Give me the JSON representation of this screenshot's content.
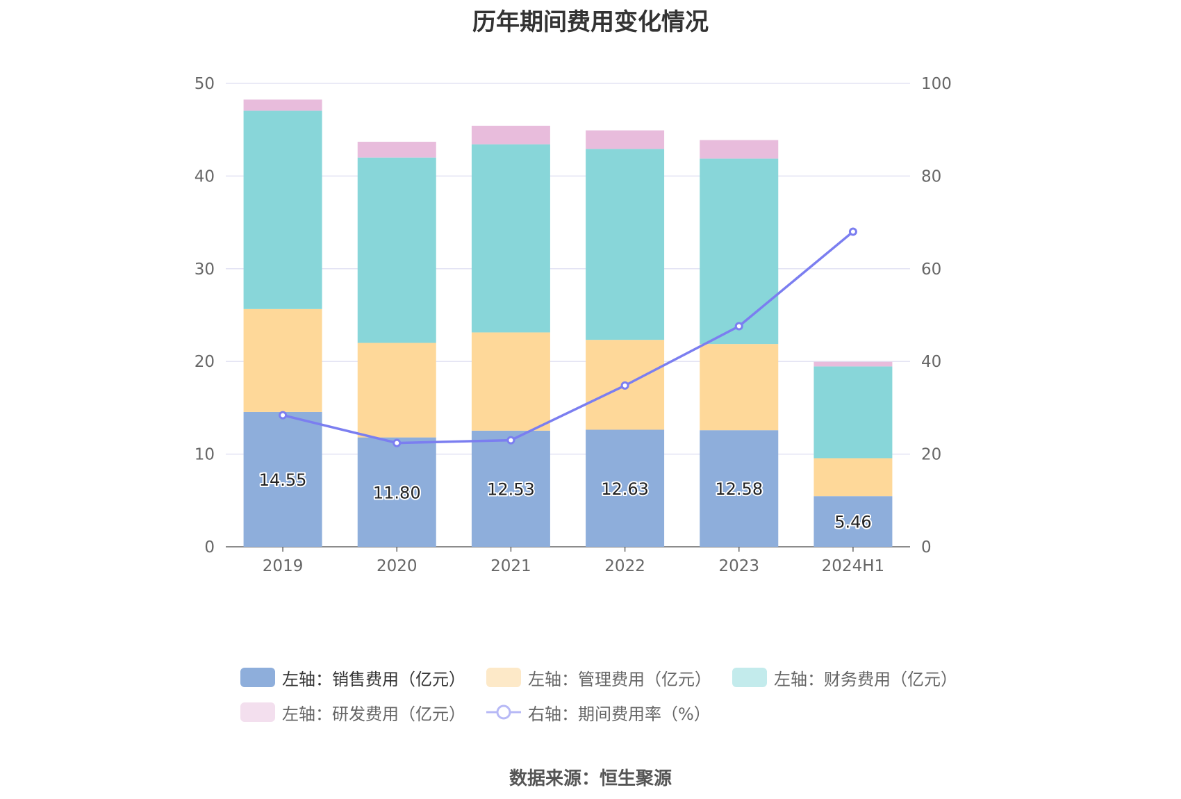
{
  "chart_data": {
    "type": "bar",
    "stacked": true,
    "title": "历年期间费用变化情况",
    "categories": [
      "2019",
      "2020",
      "2021",
      "2022",
      "2023",
      "2024H1"
    ],
    "ylim_left": [
      0,
      50
    ],
    "yticks_left": [
      0,
      10,
      20,
      30,
      40,
      50
    ],
    "ylim_right": [
      0,
      100
    ],
    "yticks_right": [
      0,
      20,
      40,
      60,
      80,
      100
    ],
    "grid": true,
    "legend_position": "bottom",
    "series": [
      {
        "name": "左轴：销售费用（亿元）",
        "axis": "left",
        "type": "bar",
        "color": "#8eaedb",
        "values": [
          14.55,
          11.8,
          12.53,
          12.63,
          12.58,
          5.46
        ],
        "show_labels": true
      },
      {
        "name": "左轴：管理费用（亿元）",
        "axis": "left",
        "type": "bar",
        "color": "#fed899",
        "values": [
          11.1,
          10.2,
          10.6,
          9.7,
          9.3,
          4.1
        ]
      },
      {
        "name": "左轴：财务费用（亿元）",
        "axis": "left",
        "type": "bar",
        "color": "#88d6d9",
        "values": [
          21.4,
          20.0,
          20.3,
          20.6,
          20.0,
          9.9
        ]
      },
      {
        "name": "左轴：研发费用（亿元）",
        "axis": "left",
        "type": "bar",
        "color": "#e8bcdc",
        "values": [
          1.2,
          1.7,
          2.0,
          2.0,
          2.0,
          0.5
        ]
      },
      {
        "name": "右轴：期间费用率（%）",
        "axis": "right",
        "type": "line",
        "color": "#7b7ef0",
        "values": [
          28.4,
          22.4,
          23.0,
          34.8,
          47.6,
          68.0
        ]
      }
    ]
  },
  "source_text": "数据来源：恒生聚源"
}
